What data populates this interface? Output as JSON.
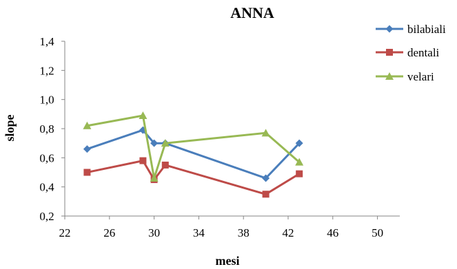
{
  "chart_data": {
    "type": "line",
    "title": "ANNA",
    "xlabel": "mesi",
    "ylabel": "slope",
    "xlim": [
      22,
      52
    ],
    "ylim": [
      0.2,
      1.4
    ],
    "xticks": [
      "22",
      "26",
      "30",
      "34",
      "38",
      "42",
      "46",
      "50"
    ],
    "yticks": [
      "0,2",
      "0,4",
      "0,6",
      "0,8",
      "1,0",
      "1,2",
      "1,4"
    ],
    "grid": false,
    "legend_position": "right",
    "series": [
      {
        "name": "bilabiali",
        "color": "#4a7ebb",
        "marker": "diamond",
        "points": [
          [
            24,
            0.66
          ],
          [
            29,
            0.79
          ],
          [
            30,
            0.7
          ],
          [
            31,
            0.7
          ],
          [
            40,
            0.46
          ],
          [
            43,
            0.7
          ]
        ]
      },
      {
        "name": "dentali",
        "color": "#be4b48",
        "marker": "square",
        "points": [
          [
            24,
            0.5
          ],
          [
            29,
            0.58
          ],
          [
            30,
            0.45
          ],
          [
            31,
            0.55
          ],
          [
            40,
            0.35
          ],
          [
            43,
            0.49
          ]
        ]
      },
      {
        "name": "velari",
        "color": "#98b954",
        "marker": "triangle",
        "points": [
          [
            24,
            0.82
          ],
          [
            29,
            0.89
          ],
          [
            30,
            0.46
          ],
          [
            31,
            0.7
          ],
          [
            40,
            0.77
          ],
          [
            43,
            0.57
          ]
        ]
      }
    ]
  }
}
